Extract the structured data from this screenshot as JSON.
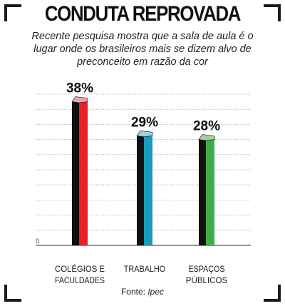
{
  "title": "CONDUTA REPROVADA",
  "subtitle": "Recente pesquisa mostra que a sala de aula é o lugar onde os brasileiros mais se dizem alvo de preconceito em razão da cor",
  "source": {
    "label": "Fonte:",
    "name": "Ipec"
  },
  "chart_data": {
    "type": "bar",
    "title": "CONDUTA REPROVADA",
    "categories": [
      [
        "COLÉGIOS E",
        "FACULDADES"
      ],
      [
        "TRABALHO"
      ],
      [
        "ESPAÇOS",
        "PÚBLICOS"
      ]
    ],
    "series": [
      {
        "values": [
          38,
          29,
          28
        ]
      }
    ],
    "value_labels": [
      "38%",
      "29%",
      "28%"
    ],
    "y_tick_label": "0",
    "ylim": [
      0,
      40
    ],
    "grid": true,
    "colors": {
      "bar_front": [
        "#e8202a",
        "#1a9bbd",
        "#3fae4a"
      ],
      "bar_top": [
        "#f4a0a0",
        "#9dd2e6",
        "#9ed29c"
      ],
      "bar_side": "#111111",
      "grid": "#9a9a9a"
    }
  }
}
